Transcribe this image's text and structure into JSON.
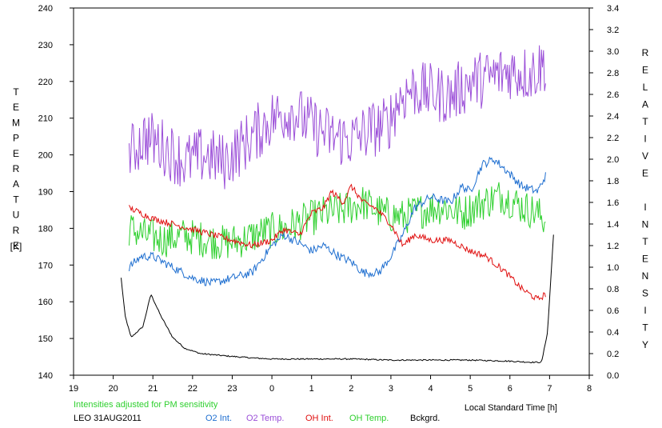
{
  "chart_data": {
    "type": "line",
    "x_ticks": [
      "19",
      "20",
      "21",
      "22",
      "23",
      "0",
      "1",
      "2",
      "3",
      "4",
      "5",
      "6",
      "7",
      "8"
    ],
    "y_left_ticks": [
      "140",
      "150",
      "160",
      "170",
      "180",
      "190",
      "200",
      "210",
      "220",
      "230",
      "240"
    ],
    "y_right_ticks": [
      "0.0",
      "0.2",
      "0.4",
      "0.6",
      "0.8",
      "1.0",
      "1.2",
      "1.4",
      "1.6",
      "1.8",
      "2.0",
      "2.2",
      "2.4",
      "2.6",
      "2.8",
      "3.0",
      "3.2",
      "3.4"
    ],
    "ylim_left": [
      140,
      240
    ],
    "ylim_right": [
      0,
      3.4
    ],
    "xlim": [
      19,
      32
    ],
    "ylabel_left": "TEMPERATURE",
    "ylabel_left_unit": "[K]",
    "ylabel_right": "RELATIVE INTENSITY",
    "xlabel": "Local Standard Time [h]",
    "note": "Intensities adjusted for PM sensitivity",
    "station": "LEO 31AUG2011",
    "grid": false,
    "legend_position": "bottom",
    "series": [
      {
        "name": "O2 Int.",
        "axis": "right",
        "color": "#1f6fd0",
        "x": [
          20.4,
          20.7,
          21.0,
          21.5,
          22.0,
          22.5,
          23.0,
          23.5,
          24.0,
          24.3,
          24.8,
          25.0,
          25.3,
          25.7,
          26.0,
          26.3,
          26.7,
          27.0,
          27.3,
          27.6,
          28.0,
          28.5,
          28.8,
          29.0,
          29.3,
          29.6,
          29.9,
          30.3,
          30.7,
          30.9
        ],
        "y": [
          1.0,
          1.1,
          1.1,
          1.0,
          0.9,
          0.85,
          0.9,
          0.95,
          1.2,
          1.3,
          1.2,
          1.15,
          1.2,
          1.1,
          1.05,
          0.95,
          0.95,
          1.1,
          1.3,
          1.55,
          1.65,
          1.6,
          1.75,
          1.7,
          1.95,
          2.0,
          1.9,
          1.75,
          1.7,
          1.85
        ],
        "noise": 0.04
      },
      {
        "name": "O2 Temp.",
        "axis": "left",
        "color": "#9b4fd8",
        "x": [
          20.4,
          20.8,
          21.3,
          21.8,
          22.3,
          22.8,
          23.2,
          23.6,
          24.0,
          24.5,
          25.0,
          25.5,
          26.0,
          26.5,
          26.9,
          27.2,
          27.5,
          28.0,
          28.5,
          29.0,
          29.5,
          30.0,
          30.5,
          30.9
        ],
        "y": [
          200,
          205,
          202,
          198,
          200,
          198,
          202,
          206,
          210,
          212,
          208,
          205,
          204,
          207,
          208,
          215,
          218,
          217,
          216,
          220,
          221,
          223,
          222,
          225
        ],
        "noise": 8
      },
      {
        "name": "OH Int.",
        "axis": "right",
        "color": "#e01010",
        "x": [
          20.4,
          20.7,
          21.0,
          21.5,
          22.0,
          22.5,
          23.0,
          23.5,
          24.0,
          24.3,
          24.7,
          25.0,
          25.3,
          25.5,
          25.8,
          26.0,
          26.3,
          26.6,
          27.0,
          27.3,
          27.6,
          28.0,
          28.5,
          29.0,
          29.4,
          29.9,
          30.3,
          30.7,
          30.9
        ],
        "y": [
          1.55,
          1.5,
          1.45,
          1.4,
          1.35,
          1.3,
          1.25,
          1.2,
          1.25,
          1.35,
          1.3,
          1.5,
          1.55,
          1.7,
          1.6,
          1.75,
          1.6,
          1.55,
          1.4,
          1.2,
          1.3,
          1.25,
          1.25,
          1.15,
          1.1,
          0.95,
          0.8,
          0.7,
          0.75
        ],
        "noise": 0.03
      },
      {
        "name": "OH Temp.",
        "axis": "left",
        "color": "#2fd02f",
        "x": [
          20.4,
          20.8,
          21.3,
          21.8,
          22.3,
          22.8,
          23.3,
          23.8,
          24.3,
          24.8,
          25.3,
          25.8,
          26.3,
          26.8,
          27.3,
          27.8,
          28.3,
          28.8,
          29.3,
          29.8,
          30.3,
          30.7,
          30.9
        ],
        "y": [
          180,
          178,
          177,
          178,
          177,
          176,
          177,
          179,
          180,
          182,
          184,
          185,
          187,
          184,
          183,
          185,
          186,
          184,
          187,
          189,
          186,
          184,
          182
        ],
        "noise": 5
      },
      {
        "name": "Bckgrd.",
        "axis": "right",
        "color": "#000000",
        "x": [
          20.2,
          20.3,
          20.45,
          20.6,
          20.75,
          20.85,
          20.95,
          21.2,
          21.5,
          21.8,
          22.2,
          22.8,
          23.5,
          24.0,
          25.0,
          26.0,
          27.0,
          28.0,
          29.0,
          30.0,
          30.5,
          30.8,
          30.95,
          31.1
        ],
        "y": [
          0.9,
          0.55,
          0.35,
          0.4,
          0.45,
          0.6,
          0.75,
          0.55,
          0.35,
          0.25,
          0.2,
          0.18,
          0.16,
          0.15,
          0.15,
          0.15,
          0.14,
          0.14,
          0.14,
          0.13,
          0.12,
          0.12,
          0.4,
          1.3
        ],
        "noise": 0.006
      }
    ]
  }
}
